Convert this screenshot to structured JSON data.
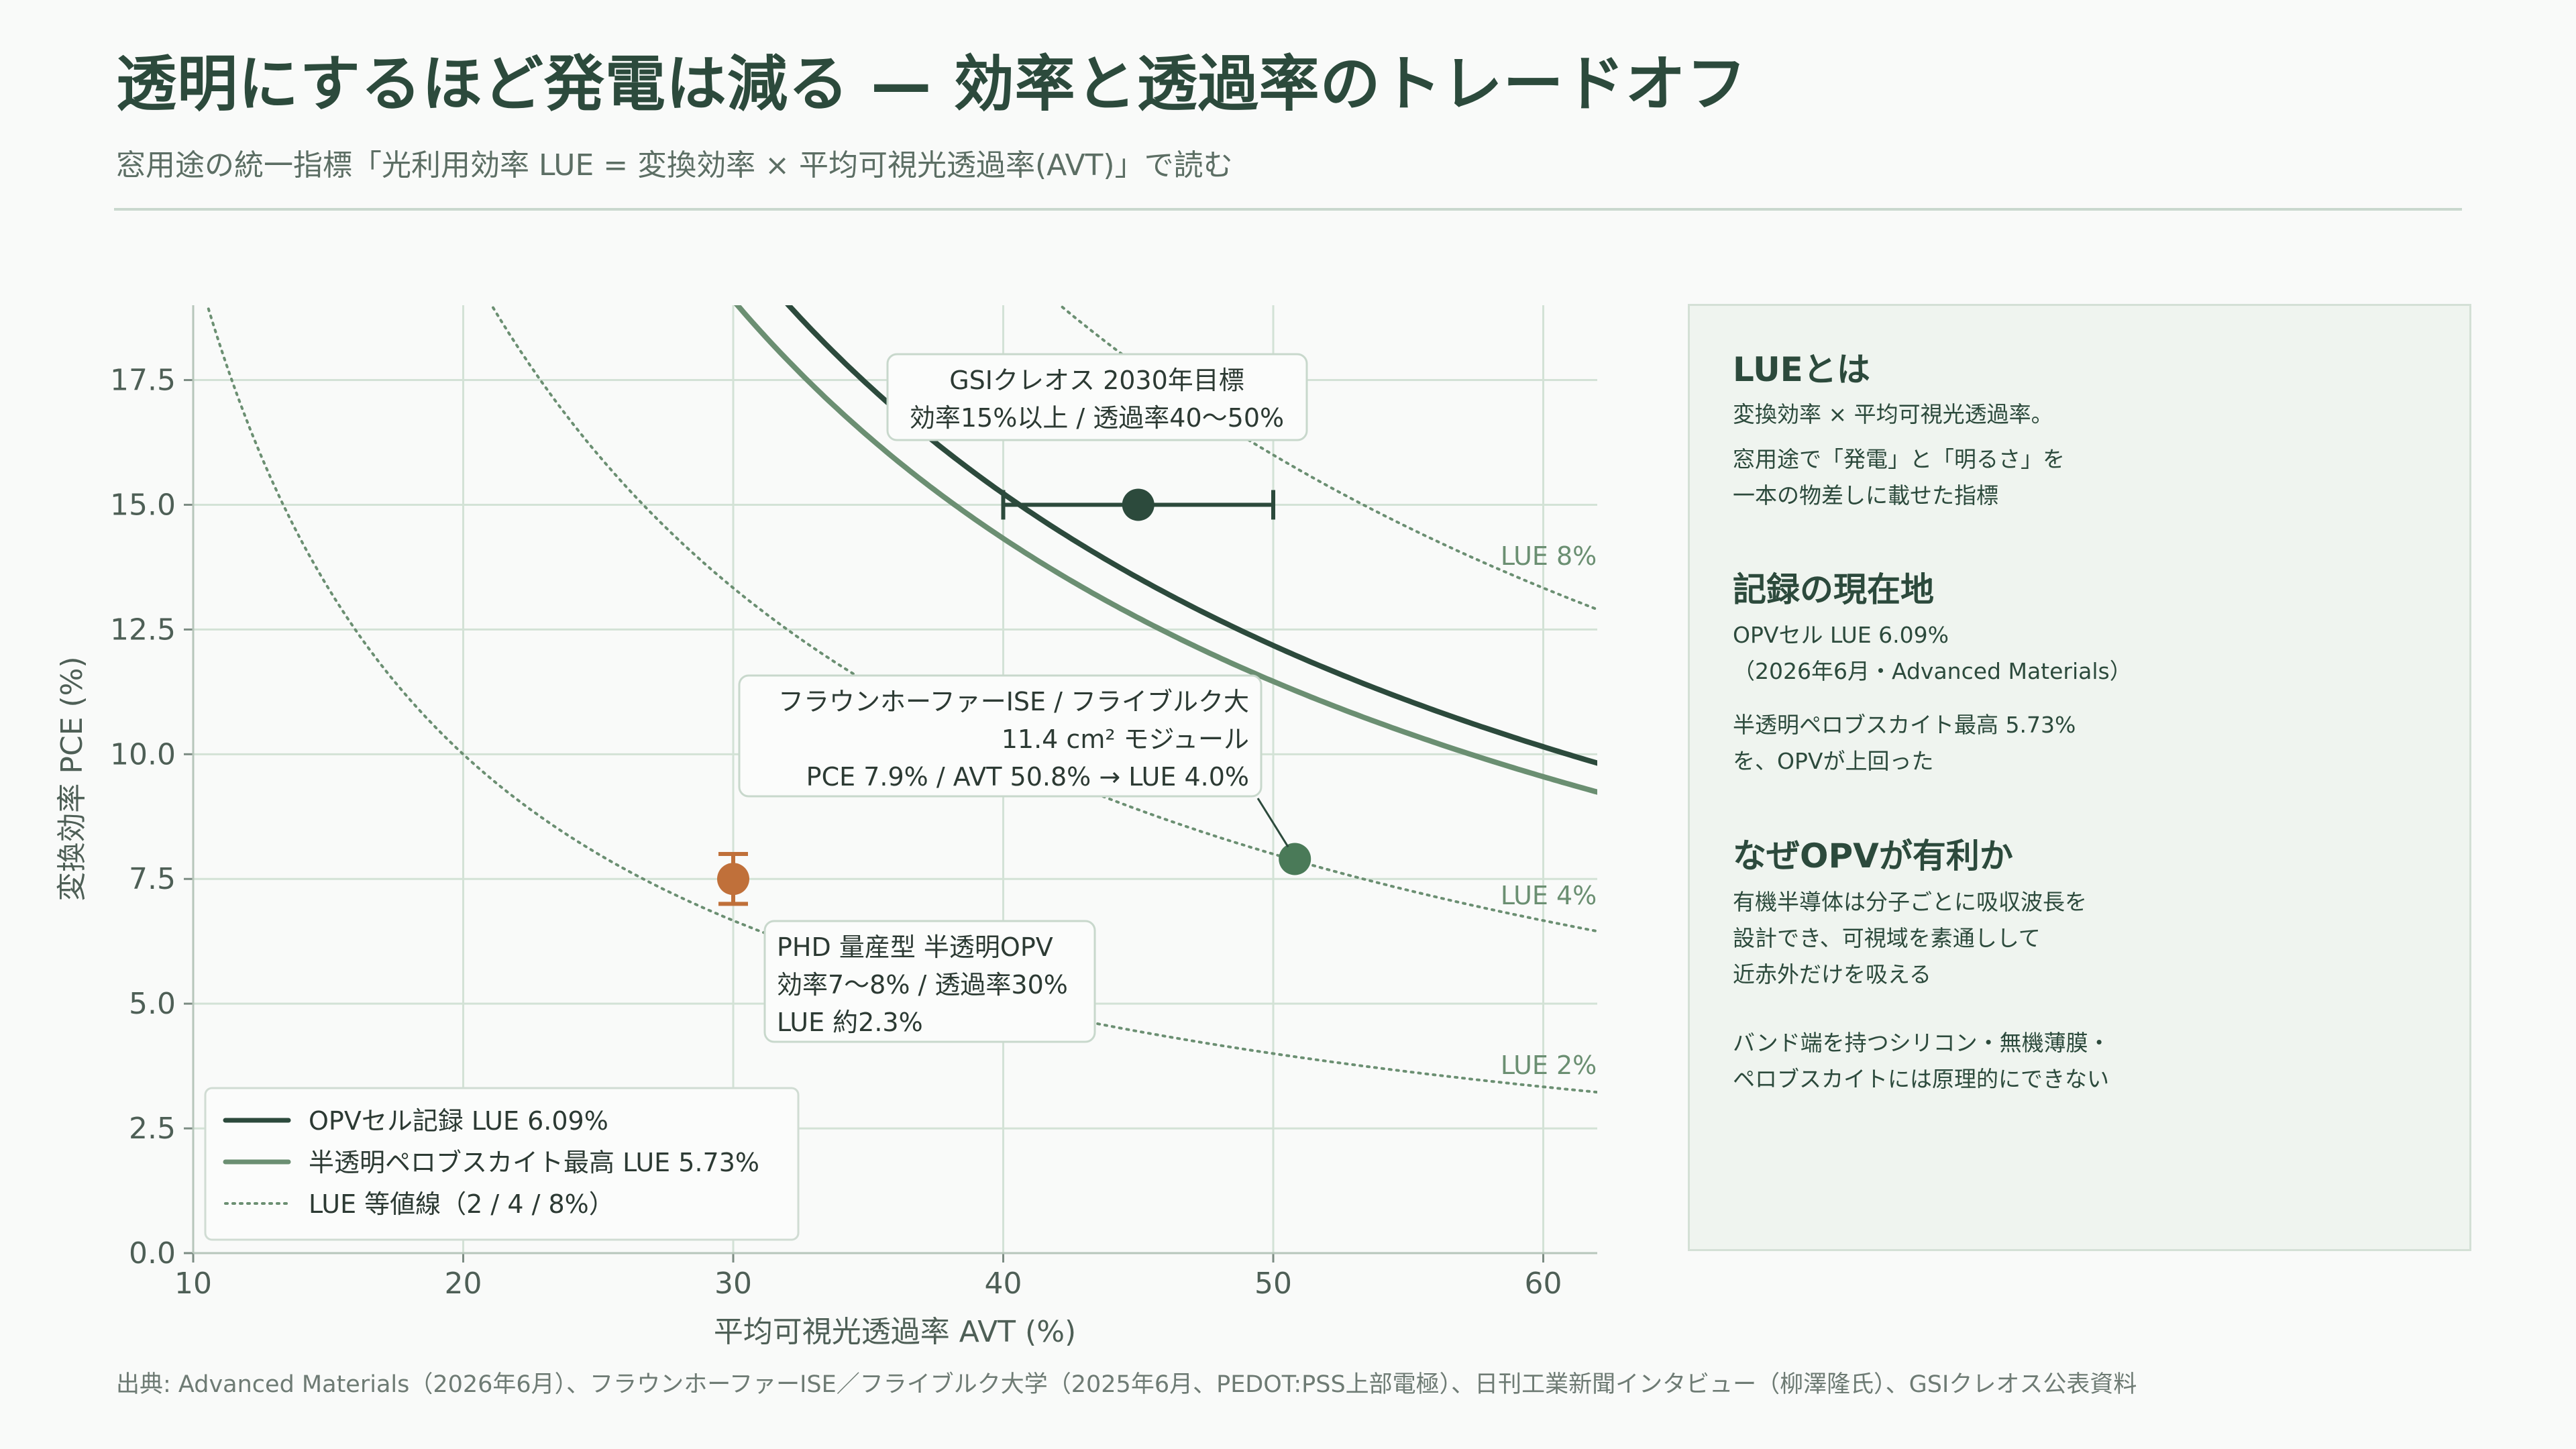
{
  "header": {
    "title": "透明にするほど発電は減る — 効率と透過率のトレードオフ",
    "subtitle": "窓用途の統一指標「光利用効率 LUE = 変換効率 × 平均可視光透過率(AVT)」で読む"
  },
  "sidebar": {
    "section1_title": "LUEとは",
    "section1_p1": "変換効率 × 平均可視光透過率。",
    "section1_p2": "窓用途で「発電」と「明るさ」を\n一本の物差しに載せた指標",
    "section2_title": "記録の現在地",
    "section2_p1": "OPVセル LUE 6.09%\n（2026年6月・Advanced Materials）",
    "section2_p2": "半透明ペロブスカイト最高 5.73%\nを、OPVが上回った",
    "section3_title": "なぜOPVが有利か",
    "section3_p1": "有機半導体は分子ごとに吸収波長を\n設計でき、可視域を素通しして\n近赤外だけを吸える",
    "section3_p2": "バンド端を持つシリコン・無機薄膜・\nペロブスカイトには原理的にできない"
  },
  "source": "出典: Advanced Materials（2026年6月）、フラウンホーファーISE／フライブルク大学（2025年6月、PEDOT:PSS上部電極）、日刊工業新聞インタビュー（柳澤隆氏）、GSIクレオス公表資料",
  "colors": {
    "dark": "#2c4a3c",
    "mid": "#6b8f72",
    "point_green": "#4a7a58",
    "point_orange": "#c0703a",
    "grid": "#d3e2d6"
  },
  "chart_data": {
    "type": "scatter",
    "xlabel": "平均可視光透過率 AVT (%)",
    "ylabel": "変換効率 PCE (%)",
    "xlim": [
      10,
      62
    ],
    "ylim": [
      0,
      19
    ],
    "xticks": [
      10,
      20,
      30,
      40,
      50,
      60
    ],
    "yticks": [
      0.0,
      2.5,
      5.0,
      7.5,
      10.0,
      12.5,
      15.0,
      17.5
    ],
    "grid": true,
    "legend_position": "bottom-left",
    "curves": [
      {
        "name": "OPVセル記録  LUE 6.09%",
        "lue": 6.09,
        "style": "solid-dark"
      },
      {
        "name": "半透明ペロブスカイト最高  LUE 5.73%",
        "lue": 5.73,
        "style": "solid-mid"
      }
    ],
    "iso_lines": {
      "name": "LUE 等値線（2 / 4 / 8%）",
      "values": [
        2,
        4,
        8
      ],
      "labels": [
        "LUE 2%",
        "LUE 4%",
        "LUE 8%"
      ]
    },
    "points": [
      {
        "key": "gsi",
        "x": 45,
        "y": 15,
        "xerr": [
          40,
          50
        ],
        "color": "dark",
        "annotation": [
          "GSIクレオス 2030年目標",
          "効率15%以上 / 透過率40〜50%"
        ]
      },
      {
        "key": "fraunhofer",
        "x": 50.8,
        "y": 7.9,
        "color": "point_green",
        "annotation": [
          "フラウンホーファーISE / フライブルク大",
          "11.4 cm² モジュール",
          "PCE 7.9% / AVT 50.8% → LUE 4.0%"
        ]
      },
      {
        "key": "phd",
        "x": 30,
        "y": 7.5,
        "yerr": [
          7,
          8
        ],
        "color": "point_orange",
        "annotation": [
          "PHD 量産型 半透明OPV",
          "効率7〜8% / 透過率30%",
          "LUE 約2.3%"
        ]
      }
    ]
  }
}
